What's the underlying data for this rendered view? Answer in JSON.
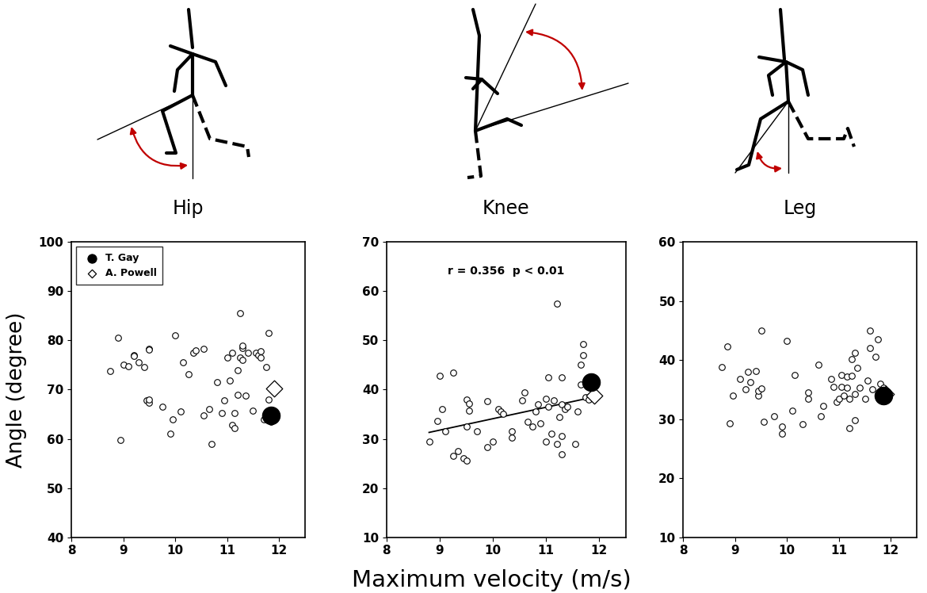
{
  "xlabel": "Maximum velocity (m/s)",
  "ylabel": "Angle (degree)",
  "chart_data": [
    {
      "type": "scatter",
      "title": "Hip",
      "xlim": [
        8,
        12.5
      ],
      "xticks": [
        8,
        9,
        10,
        11,
        12
      ],
      "ylim": [
        40,
        100
      ],
      "yticks": [
        40,
        50,
        60,
        70,
        80,
        90,
        100
      ],
      "legend": "upper left",
      "series": [
        {
          "type": "scatter",
          "marker": "open_circle",
          "color": "#000000",
          "x": [
            8.75,
            8.9,
            8.95,
            9.0,
            9.1,
            9.2,
            9.2,
            9.3,
            9.4,
            9.45,
            9.5,
            9.5,
            9.5,
            9.5,
            9.75,
            9.9,
            9.95,
            10.0,
            10.1,
            10.15,
            10.25,
            10.35,
            10.4,
            10.55,
            10.55,
            10.65,
            10.7,
            10.8,
            10.9,
            10.95,
            11.0,
            11.05,
            11.1,
            11.1,
            11.15,
            11.15,
            11.2,
            11.2,
            11.25,
            11.25,
            11.3,
            11.3,
            11.3,
            11.35,
            11.4,
            11.5,
            11.55,
            11.6,
            11.65,
            11.65,
            11.7,
            11.75,
            11.8,
            11.8,
            11.85
          ],
          "values": [
            73.8,
            80.5,
            59.7,
            75,
            74.7,
            77,
            76.8,
            75.5,
            74.6,
            67.8,
            78.3,
            78.1,
            67.3,
            68,
            66.5,
            61,
            64,
            81,
            65.5,
            75.5,
            73.2,
            77.5,
            78,
            78.3,
            64.8,
            66,
            59,
            71.5,
            65.3,
            67.8,
            76.5,
            71.8,
            62.8,
            77.5,
            62.2,
            65.3,
            74,
            69,
            85.5,
            76.5,
            78.5,
            79,
            76,
            68.8,
            77.5,
            65.8,
            77.5,
            77,
            76.5,
            77.8,
            64,
            74.5,
            81.5,
            68,
            63.5
          ]
        },
        {
          "type": "scatter",
          "name": "T. Gay",
          "marker": "filled_circle",
          "color": "#000000",
          "x": [
            11.85
          ],
          "values": [
            64.7
          ]
        },
        {
          "type": "scatter",
          "name": "A. Powell",
          "marker": "open_diamond",
          "color": "#000000",
          "x": [
            11.9
          ],
          "values": [
            70.2
          ]
        }
      ]
    },
    {
      "type": "scatter",
      "title": "Knee",
      "xlim": [
        8,
        12.5
      ],
      "xticks": [
        8,
        9,
        10,
        11,
        12
      ],
      "ylim": [
        10,
        70
      ],
      "yticks": [
        10,
        20,
        30,
        40,
        50,
        60,
        70
      ],
      "annotations": [
        "r = 0.356  p < 0.01"
      ],
      "series": [
        {
          "type": "scatter",
          "marker": "open_circle",
          "color": "#000000",
          "x": [
            8.8,
            8.95,
            9.0,
            9.05,
            9.1,
            9.25,
            9.25,
            9.35,
            9.45,
            9.5,
            9.5,
            9.5,
            9.55,
            9.55,
            9.7,
            9.9,
            9.9,
            10.0,
            10.1,
            10.15,
            10.2,
            10.35,
            10.35,
            10.55,
            10.6,
            10.65,
            10.75,
            10.8,
            10.85,
            10.9,
            11.0,
            11.0,
            11.05,
            11.05,
            11.1,
            11.15,
            11.2,
            11.2,
            11.25,
            11.3,
            11.3,
            11.3,
            11.3,
            11.35,
            11.4,
            11.55,
            11.6,
            11.65,
            11.65,
            11.7,
            11.7,
            11.75,
            11.8
          ],
          "values": [
            29.5,
            33.7,
            42.8,
            36,
            31.5,
            43.5,
            26.5,
            27.5,
            26,
            25.5,
            32.5,
            38,
            35.8,
            37.2,
            31.5,
            37.7,
            28.3,
            29.5,
            36,
            35.5,
            35,
            31.5,
            30.2,
            37.8,
            39.5,
            33.5,
            32.5,
            35.5,
            37,
            33.2,
            29.5,
            38.2,
            42.5,
            36.5,
            31,
            37.8,
            29,
            57.5,
            34.5,
            37,
            42.5,
            30.5,
            26.8,
            36,
            36.5,
            29,
            35.5,
            41,
            45,
            47,
            49.3,
            38.5,
            38
          ]
        },
        {
          "type": "line",
          "line_style": "solid",
          "color": "#000000",
          "x": [
            8.8,
            11.9
          ],
          "values": [
            31.3,
            38.5
          ]
        },
        {
          "type": "scatter",
          "name": "T. Gay",
          "marker": "filled_circle",
          "color": "#000000",
          "x": [
            11.85
          ],
          "values": [
            41.5
          ]
        },
        {
          "type": "scatter",
          "name": "A. Powell",
          "marker": "open_diamond",
          "color": "#000000",
          "x": [
            11.9
          ],
          "values": [
            38.8
          ]
        }
      ]
    },
    {
      "type": "scatter",
      "title": "Leg",
      "xlim": [
        8,
        12.5
      ],
      "xticks": [
        8,
        9,
        10,
        11,
        12
      ],
      "ylim": [
        10,
        60
      ],
      "yticks": [
        10,
        20,
        30,
        40,
        50,
        60
      ],
      "series": [
        {
          "type": "scatter",
          "marker": "open_circle",
          "color": "#000000",
          "x": [
            8.75,
            8.85,
            8.9,
            8.95,
            9.1,
            9.2,
            9.25,
            9.3,
            9.4,
            9.45,
            9.45,
            9.5,
            9.5,
            9.55,
            9.75,
            9.9,
            9.9,
            10.0,
            10.1,
            10.15,
            10.3,
            10.4,
            10.4,
            10.6,
            10.65,
            10.7,
            10.85,
            10.9,
            10.95,
            11.0,
            11.05,
            11.05,
            11.1,
            11.15,
            11.15,
            11.2,
            11.2,
            11.25,
            11.25,
            11.3,
            11.3,
            11.3,
            11.35,
            11.4,
            11.5,
            11.55,
            11.6,
            11.6,
            11.65,
            11.7,
            11.75,
            11.8,
            11.85,
            11.9
          ],
          "values": [
            38.8,
            42.3,
            29.3,
            34,
            36.8,
            35,
            38,
            36.3,
            38.2,
            34,
            34.8,
            45,
            35.2,
            29.6,
            30.5,
            27.5,
            28.8,
            43.2,
            31.5,
            37.5,
            29.2,
            34.5,
            33.4,
            39.2,
            30.5,
            32.2,
            36.8,
            35.5,
            32.9,
            33.5,
            37.5,
            35.5,
            34,
            37.2,
            35.3,
            33.5,
            28.5,
            40.2,
            37.3,
            34.3,
            41.3,
            29.8,
            38.7,
            35.3,
            33.5,
            36.5,
            45,
            42,
            35,
            40.5,
            43.5,
            36,
            35.3,
            34.5
          ]
        },
        {
          "type": "scatter",
          "name": "T. Gay",
          "marker": "filled_circle",
          "color": "#000000",
          "x": [
            11.85
          ],
          "values": [
            34
          ]
        },
        {
          "type": "scatter",
          "name": "A. Powell",
          "marker": "open_diamond",
          "color": "#000000",
          "x": [
            11.9
          ],
          "values": [
            34.2
          ]
        }
      ]
    }
  ]
}
